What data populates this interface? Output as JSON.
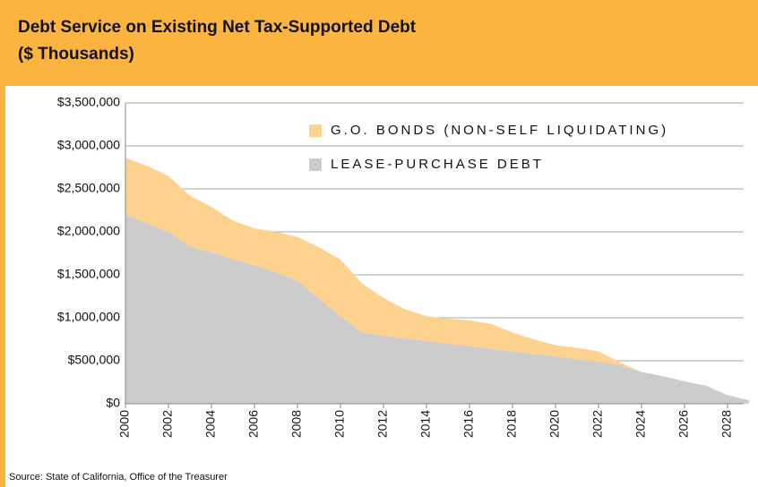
{
  "chart_data": {
    "type": "stacked_area",
    "title": "Debt Service on Existing Net Tax-Supported Debt",
    "subtitle": "($ Thousands)",
    "source": "Source:  State of California, Office of the Treasurer",
    "x": [
      2000,
      2001,
      2002,
      2003,
      2004,
      2005,
      2006,
      2007,
      2008,
      2009,
      2010,
      2011,
      2012,
      2013,
      2014,
      2015,
      2016,
      2017,
      2018,
      2019,
      2020,
      2021,
      2022,
      2023,
      2024,
      2025,
      2026,
      2027,
      2028,
      2029
    ],
    "series": [
      {
        "name": "LEASE-PURCHASE DEBT",
        "color": "#cccccc",
        "values": [
          2200000,
          2100000,
          2000000,
          1830000,
          1760000,
          1680000,
          1610000,
          1530000,
          1430000,
          1220000,
          1020000,
          830000,
          790000,
          760000,
          730000,
          700000,
          670000,
          640000,
          610000,
          580000,
          550000,
          520000,
          490000,
          450000,
          370000,
          320000,
          260000,
          210000,
          100000,
          40000
        ]
      },
      {
        "name": "G.O. BONDS (NON-SELF LIQUIDATING)",
        "color": "#fdd28e",
        "values": [
          660000,
          670000,
          650000,
          590000,
          530000,
          450000,
          430000,
          470000,
          510000,
          600000,
          660000,
          570000,
          440000,
          340000,
          290000,
          290000,
          300000,
          290000,
          220000,
          170000,
          130000,
          130000,
          120000,
          30000,
          0,
          0,
          0,
          0,
          0,
          0
        ]
      }
    ],
    "xlim": [
      2000,
      2029
    ],
    "xticks": [
      2000,
      2002,
      2004,
      2006,
      2008,
      2010,
      2012,
      2014,
      2016,
      2018,
      2020,
      2022,
      2024,
      2026,
      2028
    ],
    "ylim": [
      0,
      3500000
    ],
    "yticks": [
      {
        "value": 0,
        "label": "$0"
      },
      {
        "value": 500000,
        "label": "$500,000"
      },
      {
        "value": 1000000,
        "label": "$1,000,000"
      },
      {
        "value": 1500000,
        "label": "$1,500,000"
      },
      {
        "value": 2000000,
        "label": "$2,000,000"
      },
      {
        "value": 2500000,
        "label": "$2,500,000"
      },
      {
        "value": 3000000,
        "label": "$3,000,000"
      },
      {
        "value": 3500000,
        "label": "$3,500,000"
      }
    ],
    "grid": true,
    "legend": "top-right"
  }
}
